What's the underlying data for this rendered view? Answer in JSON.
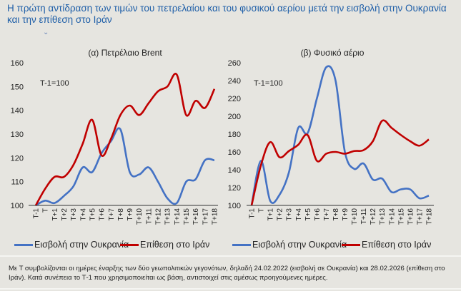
{
  "title": "Η πρώτη αντίδραση των τιμών του πετρελαίου και του φυσικού αερίου μετά την εισβολή στην Ουκρανία και την επίθεση στο Ιράν",
  "colors": {
    "ukraine": "#4472c4",
    "iran": "#c00000"
  },
  "chart_data": [
    {
      "type": "line",
      "title": "(α) Πετρέλαιο Brent",
      "annotation": "T-1=100",
      "categories": [
        "T-1",
        "T",
        "T+1",
        "T+2",
        "T+3",
        "T+4",
        "T+5",
        "T+6",
        "T+7",
        "T+8",
        "T+9",
        "T+10",
        "T+11",
        "T+12",
        "T+13",
        "T+14",
        "T+15",
        "T+16",
        "T+17",
        "T+18"
      ],
      "ylim": [
        100,
        160
      ],
      "yticks": [
        100,
        110,
        120,
        130,
        140,
        150,
        160
      ],
      "series": [
        {
          "name": "Εισβολή στην Ουκρανία",
          "color": "#4472c4",
          "values": [
            100,
            102,
            101,
            104,
            108,
            116,
            114,
            122,
            127,
            132,
            114,
            113,
            116,
            110,
            103,
            101,
            110,
            111,
            119,
            119
          ]
        },
        {
          "name": "Επίθεση στο Ιράν",
          "color": "#c00000",
          "values": [
            100,
            107,
            112,
            112,
            117,
            126,
            136,
            121,
            128,
            138,
            142,
            138,
            143,
            148,
            150,
            155,
            138,
            144,
            141,
            149
          ]
        }
      ]
    },
    {
      "type": "line",
      "title": "(β) Φυσικό αέριο",
      "annotation": "T-1=100",
      "categories": [
        "T-1",
        "T",
        "T+1",
        "T+2",
        "T+3",
        "T+4",
        "T+5",
        "T+6",
        "T+7",
        "T+8",
        "T+9",
        "T+10",
        "T+11",
        "T+12",
        "T+13",
        "T+14",
        "T+15",
        "T+16",
        "T+17",
        "T+18"
      ],
      "ylim": [
        100,
        260
      ],
      "yticks": [
        100,
        120,
        140,
        160,
        180,
        200,
        220,
        240,
        260
      ],
      "series": [
        {
          "name": "Εισβολή στην Ουκρανία",
          "color": "#4472c4",
          "values": [
            100,
            150,
            105,
            112,
            137,
            187,
            181,
            220,
            255,
            240,
            160,
            141,
            147,
            129,
            130,
            115,
            118,
            118,
            108,
            111
          ]
        },
        {
          "name": "Επίθεση στο Ιράν",
          "color": "#c00000",
          "values": [
            100,
            145,
            171,
            154,
            161,
            168,
            179,
            150,
            158,
            160,
            158,
            161,
            162,
            172,
            195,
            187,
            179,
            172,
            167,
            174
          ]
        }
      ]
    }
  ],
  "legend": [
    "Εισβολή στην Ουκρανία",
    "Επίθεση στο Ιράν",
    "Εισβολή στην Ουκρανία",
    "Επίθεση στο Ιράν"
  ],
  "note": "Με Τ συμβολίζονται οι ημέρες έναρξης των δύο γεωπολιτικών γεγονότων, δηλαδή 24.02.2022 (εισβολή σε Ουκρανία) και 28.02.2026 (επίθεση στο Ιράν). Κατά συνέπεια το Τ-1 που χρησιμοποιείται ως βάση, αντιστοιχεί στις αμέσως προηγούμενες ημέρες."
}
